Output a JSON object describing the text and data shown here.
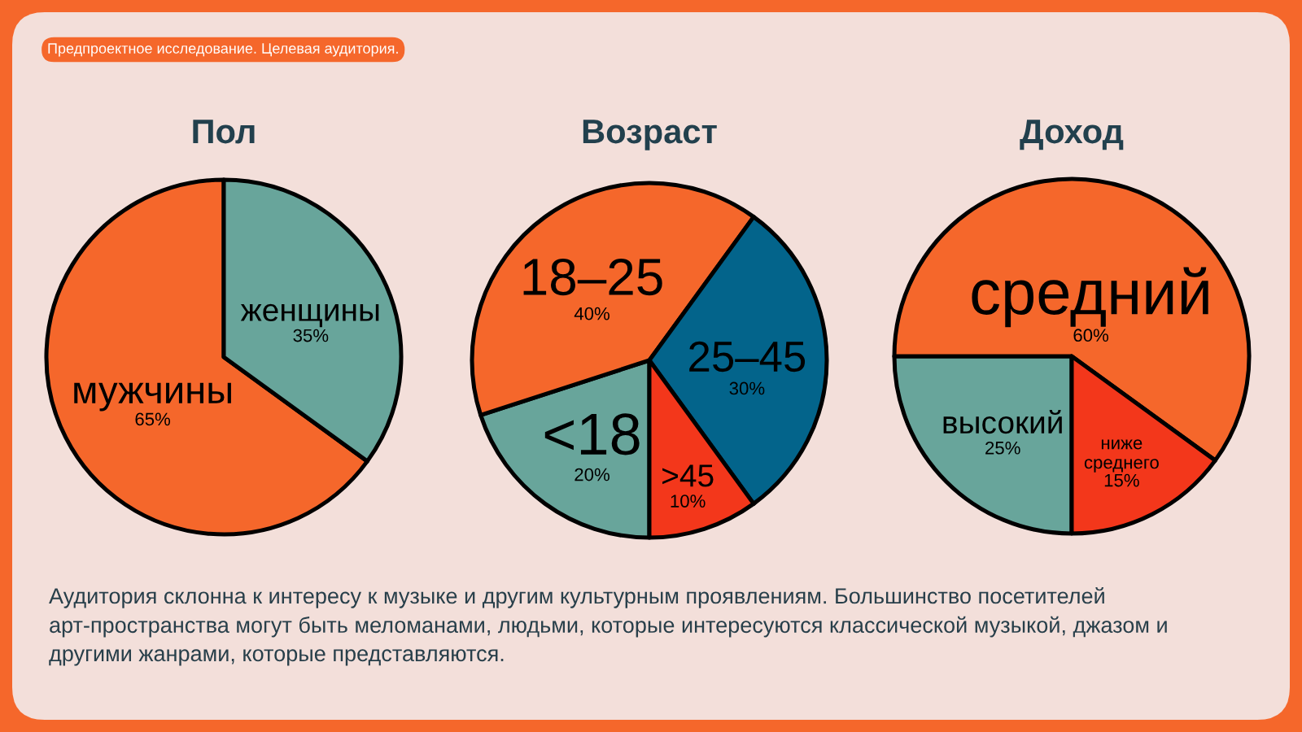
{
  "chart_data": [
    {
      "type": "pie",
      "title": "Пол",
      "categories": [
        "мужчины",
        "женщины"
      ],
      "values": [
        65,
        35
      ],
      "colors": [
        "#f5672b",
        "#68a59b"
      ],
      "value_labels": [
        "65%",
        "35%"
      ],
      "annotations": [
        "Предпроектное исследование. Целевая аудитория.",
        "Аудитория склонна к интересу к музыке и другим культурным проявлениям. Большинство посетителей арт-пространства могут быть меломанами, людьми, которые интересуются классической музыкой, джазом и другими жанрами, которые представляются."
      ]
    },
    {
      "type": "pie",
      "title": "Возраст",
      "categories": [
        "<18",
        "18–25",
        "25–45",
        ">45"
      ],
      "values": [
        20,
        40,
        30,
        10
      ],
      "colors": [
        "#68a59b",
        "#f5672b",
        "#03648b",
        "#f3371b"
      ],
      "value_labels": [
        "20%",
        "40%",
        "30%",
        "10%"
      ]
    },
    {
      "type": "pie",
      "title": "Доход",
      "categories": [
        "высокий",
        "средний",
        "ниже среднего"
      ],
      "values": [
        25,
        60,
        15
      ],
      "colors": [
        "#68a59b",
        "#f5672b",
        "#f3371b"
      ],
      "value_labels": [
        "25%",
        "60%",
        "15%"
      ]
    }
  ]
}
